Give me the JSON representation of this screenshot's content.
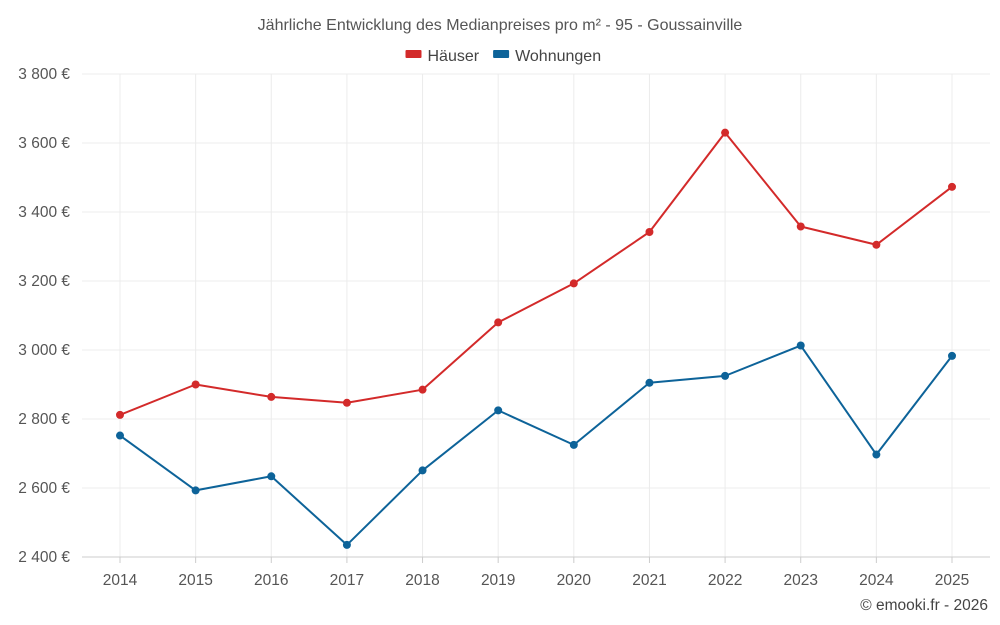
{
  "chart_data": {
    "type": "line",
    "title": "Jährliche Entwicklung des Medianpreises pro m² - 95 - Goussainville",
    "categories": [
      "2014",
      "2015",
      "2016",
      "2017",
      "2018",
      "2019",
      "2020",
      "2021",
      "2022",
      "2023",
      "2024",
      "2025"
    ],
    "ylim": [
      2400,
      3800
    ],
    "yticks": [
      2400,
      2600,
      2800,
      3000,
      3200,
      3400,
      3600,
      3800
    ],
    "ytick_labels": [
      "2 400 €",
      "2 600 €",
      "2 800 €",
      "3 000 €",
      "3 200 €",
      "3 400 €",
      "3 600 €",
      "3 800 €"
    ],
    "xlabel": "",
    "ylabel": "",
    "grid": true,
    "legend_position": "top-center",
    "series": [
      {
        "name": "Häuser",
        "color": "#d32a2a",
        "values": [
          2812,
          2900,
          2864,
          2847,
          2885,
          3080,
          3193,
          3342,
          3630,
          3358,
          3305,
          3473
        ]
      },
      {
        "name": "Wohnungen",
        "color": "#0d6399",
        "values": [
          2752,
          2593,
          2634,
          2435,
          2651,
          2825,
          2725,
          2905,
          2925,
          3013,
          2697,
          2983
        ]
      }
    ]
  },
  "credit": "© emooki.fr - 2026"
}
